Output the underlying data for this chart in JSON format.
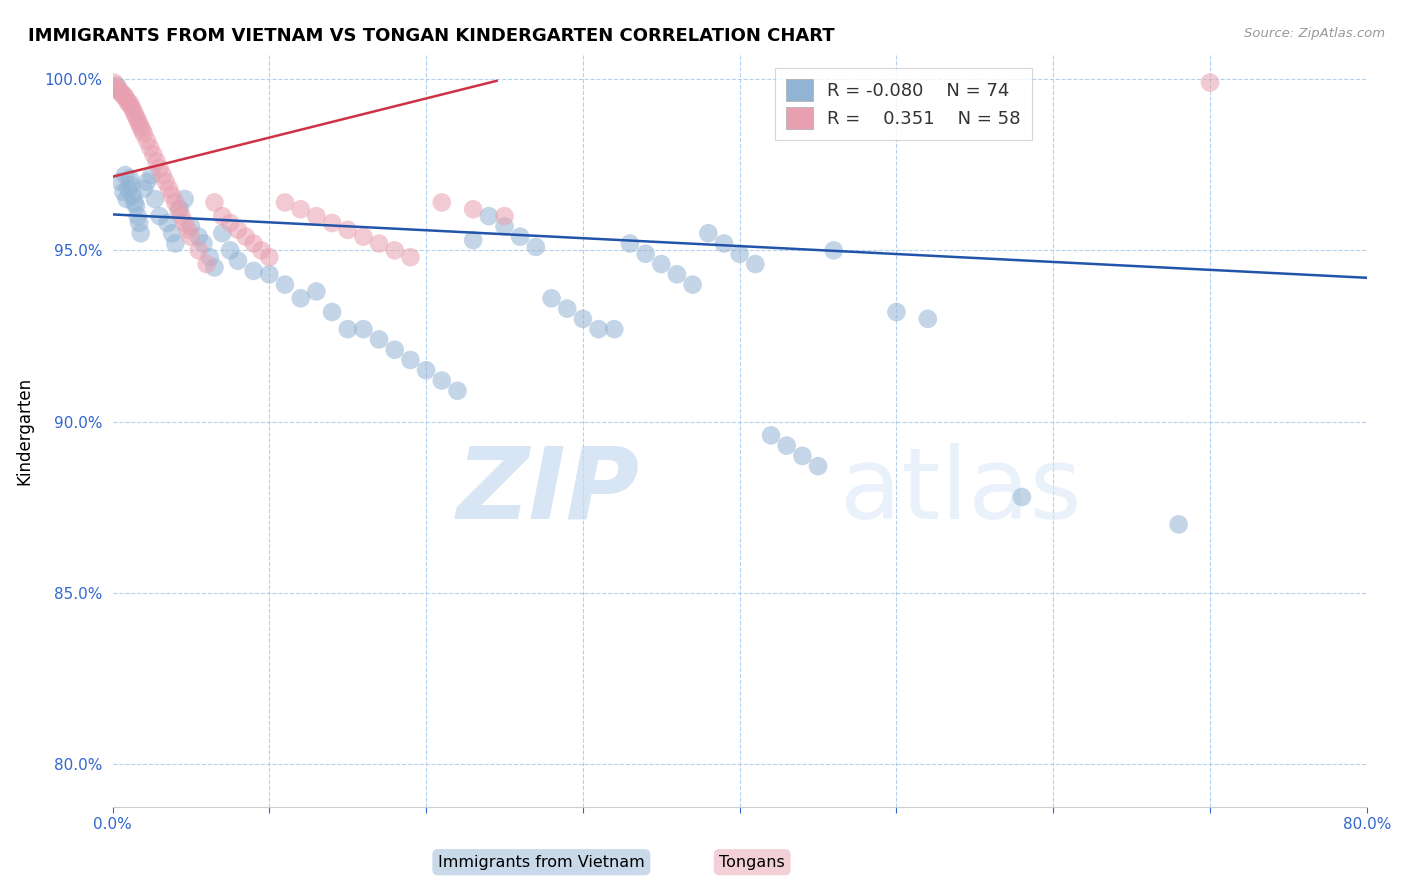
{
  "title": "IMMIGRANTS FROM VIETNAM VS TONGAN KINDERGARTEN CORRELATION CHART",
  "source": "Source: ZipAtlas.com",
  "ylabel": "Kindergarten",
  "xlim": [
    0.0,
    0.8
  ],
  "ylim": [
    0.7875,
    1.007
  ],
  "xticks": [
    0.0,
    0.1,
    0.2,
    0.3,
    0.4,
    0.5,
    0.6,
    0.7,
    0.8
  ],
  "xticklabels": [
    "0.0%",
    "",
    "",
    "",
    "",
    "",
    "",
    "",
    "80.0%"
  ],
  "yticks": [
    0.8,
    0.85,
    0.9,
    0.95,
    1.0
  ],
  "yticklabels": [
    "80.0%",
    "85.0%",
    "90.0%",
    "95.0%",
    "100.0%"
  ],
  "legend_r_blue": "-0.080",
  "legend_n_blue": "74",
  "legend_r_pink": "0.351",
  "legend_n_pink": "58",
  "blue_color": "#92b4d4",
  "pink_color": "#e8a0b0",
  "trend_blue": "#2255aa",
  "trend_pink": "#cc3344",
  "watermark_zip": "ZIP",
  "watermark_atlas": "atlas",
  "blue_scatter_x": [
    0.003,
    0.005,
    0.007,
    0.008,
    0.009,
    0.01,
    0.011,
    0.012,
    0.013,
    0.014,
    0.015,
    0.016,
    0.017,
    0.018,
    0.02,
    0.022,
    0.025,
    0.027,
    0.03,
    0.035,
    0.038,
    0.04,
    0.043,
    0.046,
    0.05,
    0.055,
    0.058,
    0.062,
    0.065,
    0.07,
    0.075,
    0.08,
    0.09,
    0.1,
    0.11,
    0.12,
    0.13,
    0.14,
    0.15,
    0.16,
    0.17,
    0.18,
    0.19,
    0.2,
    0.21,
    0.22,
    0.23,
    0.24,
    0.25,
    0.26,
    0.27,
    0.28,
    0.29,
    0.3,
    0.31,
    0.32,
    0.33,
    0.34,
    0.35,
    0.36,
    0.37,
    0.38,
    0.39,
    0.4,
    0.41,
    0.42,
    0.43,
    0.44,
    0.45,
    0.46,
    0.5,
    0.52,
    0.58,
    0.68
  ],
  "blue_scatter_y": [
    0.998,
    0.97,
    0.967,
    0.972,
    0.965,
    0.968,
    0.971,
    0.969,
    0.966,
    0.964,
    0.963,
    0.96,
    0.958,
    0.955,
    0.968,
    0.97,
    0.972,
    0.965,
    0.96,
    0.958,
    0.955,
    0.952,
    0.962,
    0.965,
    0.957,
    0.954,
    0.952,
    0.948,
    0.945,
    0.955,
    0.95,
    0.947,
    0.944,
    0.943,
    0.94,
    0.936,
    0.938,
    0.932,
    0.927,
    0.927,
    0.924,
    0.921,
    0.918,
    0.915,
    0.912,
    0.909,
    0.953,
    0.96,
    0.957,
    0.954,
    0.951,
    0.936,
    0.933,
    0.93,
    0.927,
    0.927,
    0.952,
    0.949,
    0.946,
    0.943,
    0.94,
    0.955,
    0.952,
    0.949,
    0.946,
    0.896,
    0.893,
    0.89,
    0.887,
    0.95,
    0.932,
    0.93,
    0.878,
    0.87
  ],
  "pink_scatter_x": [
    0.001,
    0.002,
    0.003,
    0.004,
    0.005,
    0.006,
    0.007,
    0.008,
    0.009,
    0.01,
    0.011,
    0.012,
    0.013,
    0.014,
    0.015,
    0.016,
    0.017,
    0.018,
    0.019,
    0.02,
    0.022,
    0.024,
    0.026,
    0.028,
    0.03,
    0.032,
    0.034,
    0.036,
    0.038,
    0.04,
    0.042,
    0.044,
    0.046,
    0.048,
    0.05,
    0.055,
    0.06,
    0.065,
    0.07,
    0.075,
    0.08,
    0.085,
    0.09,
    0.095,
    0.1,
    0.11,
    0.12,
    0.13,
    0.14,
    0.15,
    0.16,
    0.17,
    0.18,
    0.19,
    0.21,
    0.23,
    0.25,
    0.7
  ],
  "pink_scatter_y": [
    0.999,
    0.998,
    0.997,
    0.997,
    0.996,
    0.996,
    0.995,
    0.995,
    0.994,
    0.993,
    0.993,
    0.992,
    0.991,
    0.99,
    0.989,
    0.988,
    0.987,
    0.986,
    0.985,
    0.984,
    0.982,
    0.98,
    0.978,
    0.976,
    0.974,
    0.972,
    0.97,
    0.968,
    0.966,
    0.964,
    0.962,
    0.96,
    0.958,
    0.956,
    0.954,
    0.95,
    0.946,
    0.964,
    0.96,
    0.958,
    0.956,
    0.954,
    0.952,
    0.95,
    0.948,
    0.964,
    0.962,
    0.96,
    0.958,
    0.956,
    0.954,
    0.952,
    0.95,
    0.948,
    0.964,
    0.962,
    0.96,
    0.999
  ],
  "blue_trend_x": [
    0.0,
    0.8
  ],
  "blue_trend_y": [
    0.9605,
    0.942
  ],
  "pink_trend_x": [
    0.0,
    0.245
  ],
  "pink_trend_y": [
    0.9715,
    0.9995
  ]
}
